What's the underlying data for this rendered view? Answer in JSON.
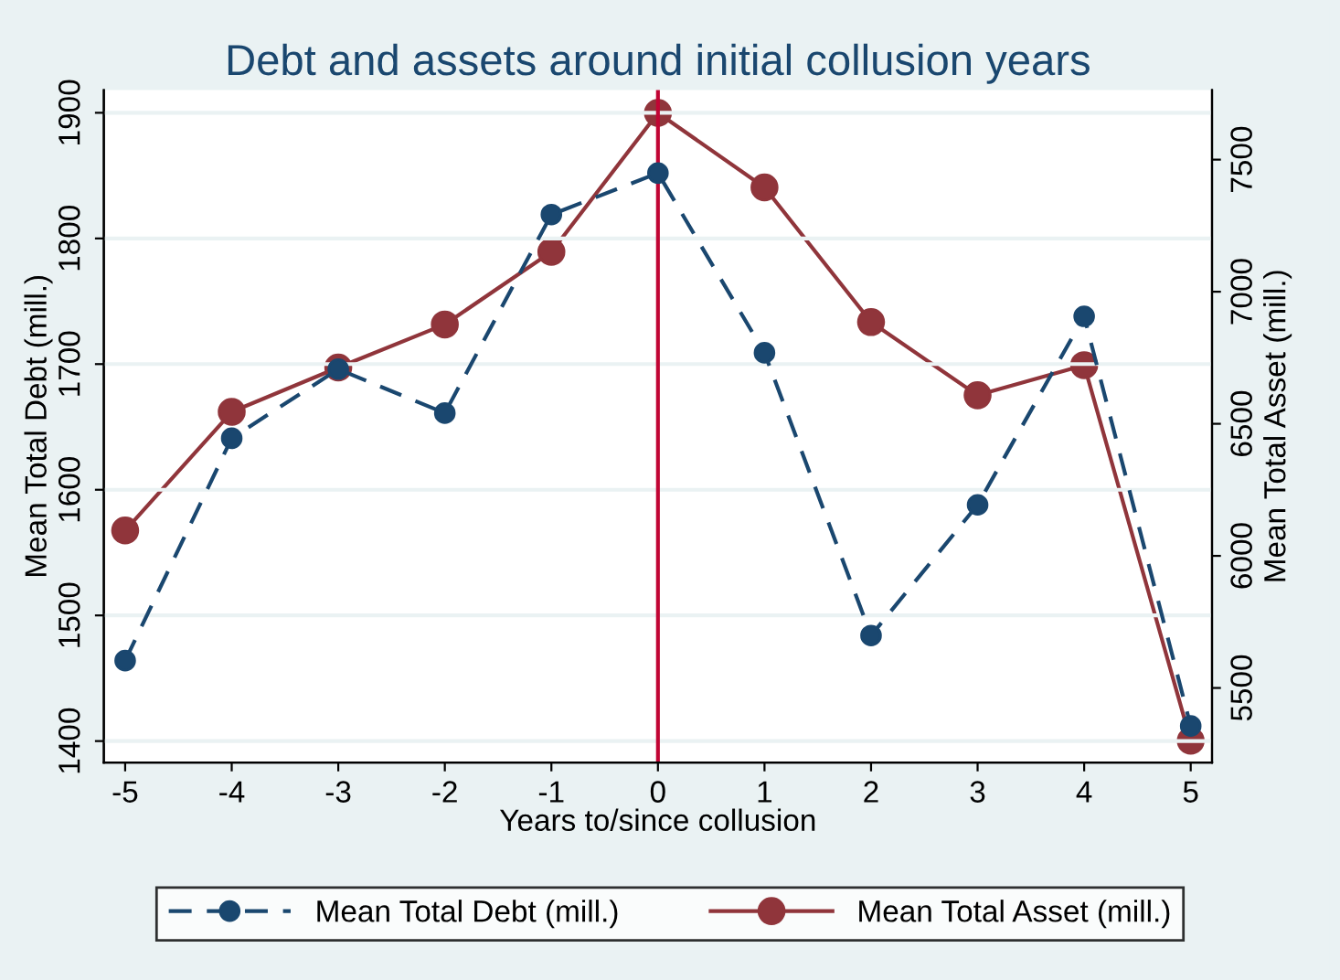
{
  "chart_data": {
    "type": "line",
    "title": "Debt and assets around initial collusion years",
    "xlabel": "Years to/since collusion",
    "ylabel": "Mean Total Debt (mill.)",
    "y2label": "Mean Total Asset (mill.)",
    "x": [
      -5,
      -4,
      -3,
      -2,
      -1,
      0,
      1,
      2,
      3,
      4,
      5
    ],
    "series": [
      {
        "name": "Mean Total Debt (mill.)",
        "color": "#1a476f",
        "line_style": "dashed",
        "values": [
          1464,
          1641,
          1696,
          1661,
          1819,
          1852,
          1709,
          1484,
          1588,
          1738,
          1412
        ]
      },
      {
        "name": "Mean Total Asset (mill.)",
        "color": "#90353b",
        "line_style": "solid",
        "axis": "y2",
        "values": [
          6096,
          6545,
          6713,
          6876,
          7151,
          7677,
          7395,
          6885,
          6608,
          6722,
          5300
        ]
      }
    ],
    "marker": "circle",
    "xlim": [
      -5.2,
      5.2
    ],
    "xticks": [
      -5,
      -4,
      -3,
      -2,
      -1,
      0,
      1,
      2,
      3,
      4,
      5
    ],
    "ylim": [
      1383,
      1918
    ],
    "yticks": [
      1400,
      1500,
      1600,
      1700,
      1800,
      1900
    ],
    "y2lim": [
      5218,
      7763
    ],
    "y2ticks": [
      5500,
      6000,
      6500,
      7000,
      7500
    ],
    "ref_lines": [
      {
        "axis": "x",
        "value": 0,
        "color": "#c10534"
      }
    ],
    "grid": "y",
    "legend": "bottom"
  }
}
